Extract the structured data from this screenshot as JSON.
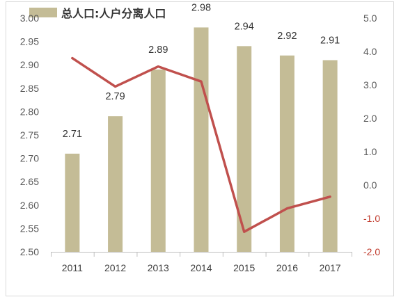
{
  "chart_data": {
    "type": "bar",
    "categories": [
      "2011",
      "2012",
      "2013",
      "2014",
      "2015",
      "2016",
      "2017"
    ],
    "series": [
      {
        "name": "总人口:人户分离人口",
        "type": "bar",
        "axis": "left",
        "values": [
          2.71,
          2.79,
          2.89,
          2.98,
          2.94,
          2.92,
          2.91
        ],
        "data_labels": [
          "2.71",
          "2.79",
          "2.89",
          "2.98",
          "2.94",
          "2.92",
          "2.91"
        ]
      },
      {
        "type": "line",
        "axis": "right",
        "values": [
          3.8,
          2.95,
          3.55,
          3.1,
          -1.4,
          -0.7,
          -0.35
        ]
      }
    ],
    "y_left": {
      "ylim": [
        2.5,
        3.0
      ],
      "ticks": [
        "2.50",
        "2.55",
        "2.60",
        "2.65",
        "2.70",
        "2.75",
        "2.80",
        "2.85",
        "2.90",
        "2.95",
        "3.00"
      ]
    },
    "y_right": {
      "ylim": [
        -2.0,
        5.0
      ],
      "ticks": [
        "-2.0",
        "-1.0",
        "0.0",
        "1.0",
        "2.0",
        "3.0",
        "4.0",
        "5.0"
      ]
    },
    "legend": {
      "placement": "top-left",
      "entries": [
        "总人口:人户分离人口"
      ]
    },
    "title": "",
    "xlabel": "",
    "ylabel": "",
    "grid": false
  },
  "colors": {
    "bar": "#c4bc96",
    "line": "#c0504d",
    "axis": "#bfbfbf",
    "negative_tick": "#c0392b"
  }
}
